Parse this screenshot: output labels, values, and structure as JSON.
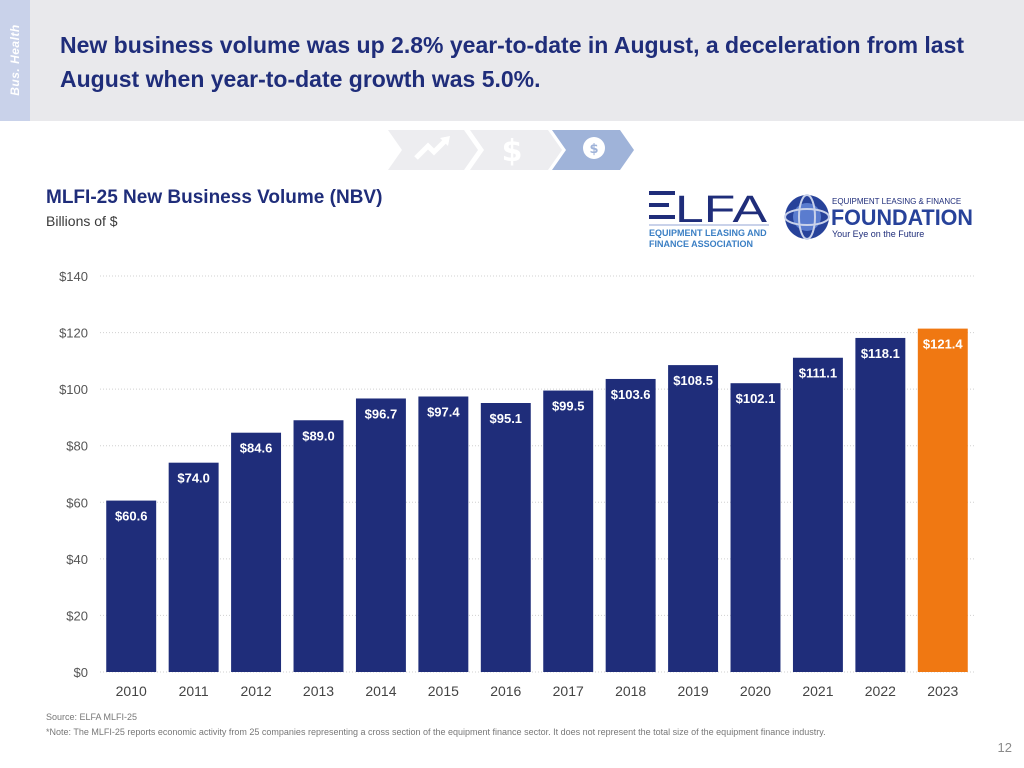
{
  "side_tab": "Bus. Health",
  "headline": "New business volume was up 2.8% year-to-date in August, a deceleration from last August when year-to-date growth was 5.0%.",
  "logos": {
    "elfa": {
      "mark": "ELFA",
      "line1": "EQUIPMENT LEASING AND",
      "line2": "FINANCE ASSOCIATION"
    },
    "foundation": {
      "top": "EQUIPMENT LEASING & FINANCE",
      "name": "FOUNDATION",
      "tagline": "Your Eye on the Future"
    }
  },
  "footer": {
    "source": "Source: ELFA MLFI-25",
    "note": "*Note: The MLFI-25 reports economic activity from 25 companies representing a cross section of the equipment finance sector. It does not represent the total size of the equipment finance industry.",
    "page_number": "12"
  },
  "colors": {
    "bar": "#1f2d7a",
    "bar_highlight": "#f07812",
    "headline": "#1f2d7a",
    "header_band": "#e9e9ec",
    "side_tab": "#c9d2ea"
  },
  "icons": [
    "handshake-arrow-icon",
    "dollar-icon",
    "money-head-icon"
  ],
  "chart_data": {
    "type": "bar",
    "title": "MLFI-25 New Business Volume (NBV)",
    "subtitle": "Billions of $",
    "categories": [
      "2010",
      "2011",
      "2012",
      "2013",
      "2014",
      "2015",
      "2016",
      "2017",
      "2018",
      "2019",
      "2020",
      "2021",
      "2022",
      "2023"
    ],
    "values": [
      60.6,
      74.0,
      84.6,
      89.0,
      96.7,
      97.4,
      95.1,
      99.5,
      103.6,
      108.5,
      102.1,
      111.1,
      118.1,
      121.4
    ],
    "labels": [
      "$60.6",
      "$74.0",
      "$84.6",
      "$89.0",
      "$96.7",
      "$97.4",
      "$95.1",
      "$99.5",
      "$103.6",
      "$108.5",
      "$102.1",
      "$111.1",
      "$118.1",
      "$121.4"
    ],
    "highlight_index": 13,
    "ylim": [
      0,
      140
    ],
    "yticks": [
      0,
      20,
      40,
      60,
      80,
      100,
      120,
      140
    ],
    "ytick_labels": [
      "$0",
      "$20",
      "$40",
      "$60",
      "$80",
      "$100",
      "$120",
      "$140"
    ],
    "grid": true,
    "legend": "none"
  }
}
